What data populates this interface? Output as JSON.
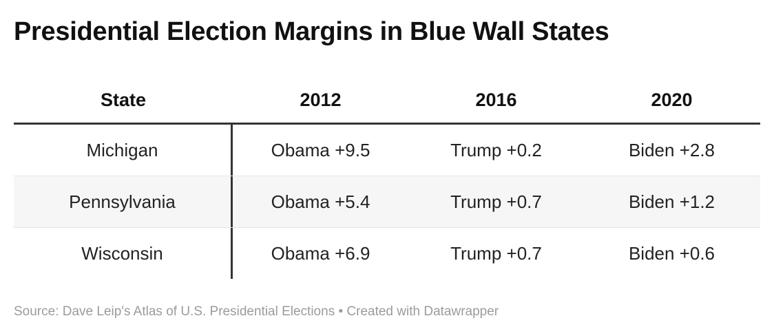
{
  "title": "Presidential Election Margins in Blue Wall States",
  "chart_data": {
    "type": "table",
    "columns": [
      "State",
      "2012",
      "2016",
      "2020"
    ],
    "rows": [
      [
        "Michigan",
        "Obama +9.5",
        "Trump +0.2",
        "Biden +2.8"
      ],
      [
        "Pennsylvania",
        "Obama +5.4",
        "Trump +0.7",
        "Biden +1.2"
      ],
      [
        "Wisconsin",
        "Obama +6.9",
        "Trump +0.7",
        "Biden +0.6"
      ]
    ]
  },
  "source": "Source: Dave Leip's Atlas of U.S. Presidential Elections • Created with Datawrapper"
}
